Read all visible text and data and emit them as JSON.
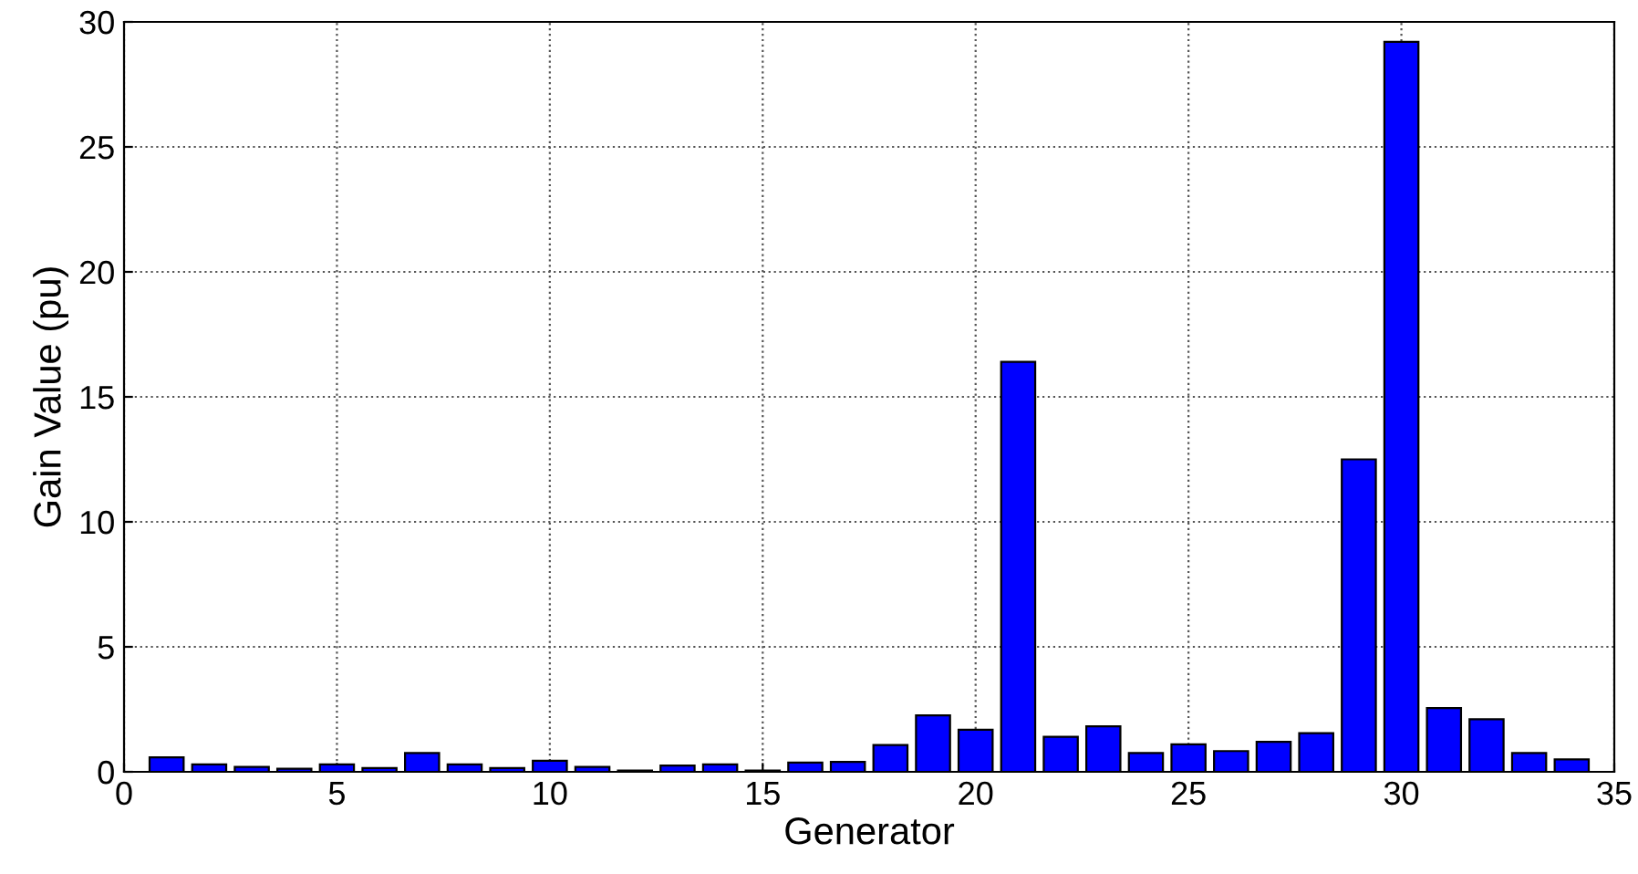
{
  "chart_data": {
    "type": "bar",
    "xlabel": "Generator",
    "ylabel": "Gain Value (pu)",
    "x": [
      1,
      2,
      3,
      4,
      5,
      6,
      7,
      8,
      9,
      10,
      11,
      12,
      13,
      14,
      15,
      16,
      17,
      18,
      19,
      20,
      21,
      22,
      23,
      24,
      25,
      26,
      27,
      28,
      29,
      30,
      31,
      32,
      33,
      34
    ],
    "series": [
      {
        "color": "#0000ff",
        "values": [
          0.58,
          0.3,
          0.2,
          0.12,
          0.3,
          0.15,
          0.75,
          0.3,
          0.15,
          0.44,
          0.2,
          0.05,
          0.25,
          0.3,
          0.05,
          0.37,
          0.4,
          1.07,
          2.26,
          1.68,
          16.4,
          1.4,
          1.82,
          0.75,
          1.1,
          0.83,
          1.2,
          1.55,
          12.5,
          29.2,
          2.55,
          2.1,
          0.75,
          0.5
        ]
      }
    ],
    "xlim": [
      0,
      35
    ],
    "xticks": [
      0,
      5,
      10,
      15,
      20,
      25,
      30,
      35
    ],
    "ylim": [
      0,
      30
    ],
    "yticks": [
      0,
      5,
      10,
      15,
      20,
      25,
      30
    ],
    "grid": true,
    "line_style": "dotted"
  }
}
